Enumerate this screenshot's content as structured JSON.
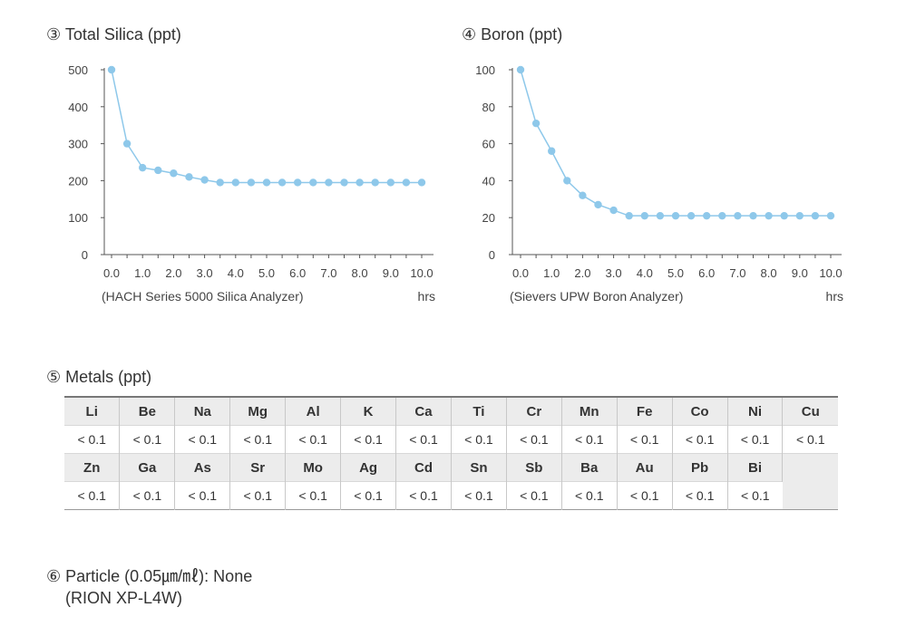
{
  "chart_data": [
    {
      "type": "line",
      "title": "③ Total Silica (ppt)",
      "caption": "(HACH Series 5000 Silica Analyzer)",
      "xunit": "hrs",
      "x": [
        0.0,
        0.5,
        1.0,
        1.5,
        2.0,
        2.5,
        3.0,
        3.5,
        4.0,
        4.5,
        5.0,
        5.5,
        6.0,
        6.5,
        7.0,
        7.5,
        8.0,
        8.5,
        9.0,
        9.5,
        10.0
      ],
      "values": [
        500,
        300,
        235,
        228,
        220,
        210,
        202,
        195,
        195,
        195,
        195,
        195,
        195,
        195,
        195,
        195,
        195,
        195,
        195,
        195,
        195
      ],
      "ylim": [
        0,
        500
      ],
      "yticks": [
        "0",
        "100",
        "200",
        "300",
        "400",
        "500"
      ],
      "xticks": [
        "0.0",
        "1.0",
        "2.0",
        "3.0",
        "4.0",
        "5.0",
        "6.0",
        "7.0",
        "8.0",
        "9.0",
        "10.0"
      ],
      "color": "#8ec8ea"
    },
    {
      "type": "line",
      "title": "④ Boron (ppt)",
      "caption": "(Sievers UPW Boron Analyzer)",
      "xunit": "hrs",
      "x": [
        0.0,
        0.5,
        1.0,
        1.5,
        2.0,
        2.5,
        3.0,
        3.5,
        4.0,
        4.5,
        5.0,
        5.5,
        6.0,
        6.5,
        7.0,
        7.5,
        8.0,
        8.5,
        9.0,
        9.5,
        10.0
      ],
      "values": [
        100,
        71,
        56,
        40,
        32,
        27,
        24,
        21,
        21,
        21,
        21,
        21,
        21,
        21,
        21,
        21,
        21,
        21,
        21,
        21,
        21
      ],
      "ylim": [
        0,
        100
      ],
      "yticks": [
        "0",
        "20",
        "40",
        "60",
        "80",
        "100"
      ],
      "xticks": [
        "0.0",
        "1.0",
        "2.0",
        "3.0",
        "4.0",
        "5.0",
        "6.0",
        "7.0",
        "8.0",
        "9.0",
        "10.0"
      ],
      "color": "#8ec8ea"
    }
  ],
  "metals": {
    "title": "⑤ Metals (ppt)",
    "row1_symbols": [
      "Li",
      "Be",
      "Na",
      "Mg",
      "Al",
      "K",
      "Ca",
      "Ti",
      "Cr",
      "Mn",
      "Fe",
      "Co",
      "Ni",
      "Cu"
    ],
    "row1_values": [
      "< 0.1",
      "< 0.1",
      "< 0.1",
      "< 0.1",
      "< 0.1",
      "< 0.1",
      "< 0.1",
      "< 0.1",
      "< 0.1",
      "< 0.1",
      "< 0.1",
      "< 0.1",
      "< 0.1",
      "< 0.1"
    ],
    "row2_symbols": [
      "Zn",
      "Ga",
      "As",
      "Sr",
      "Mo",
      "Ag",
      "Cd",
      "Sn",
      "Sb",
      "Ba",
      "Au",
      "Pb",
      "Bi"
    ],
    "row2_values": [
      "< 0.1",
      "< 0.1",
      "< 0.1",
      "< 0.1",
      "< 0.1",
      "< 0.1",
      "< 0.1",
      "< 0.1",
      "< 0.1",
      "< 0.1",
      "< 0.1",
      "< 0.1",
      "< 0.1"
    ]
  },
  "particle": {
    "title": "⑥ Particle (0.05㎛/㎖): None",
    "instrument": "(RION XP-L4W)"
  }
}
